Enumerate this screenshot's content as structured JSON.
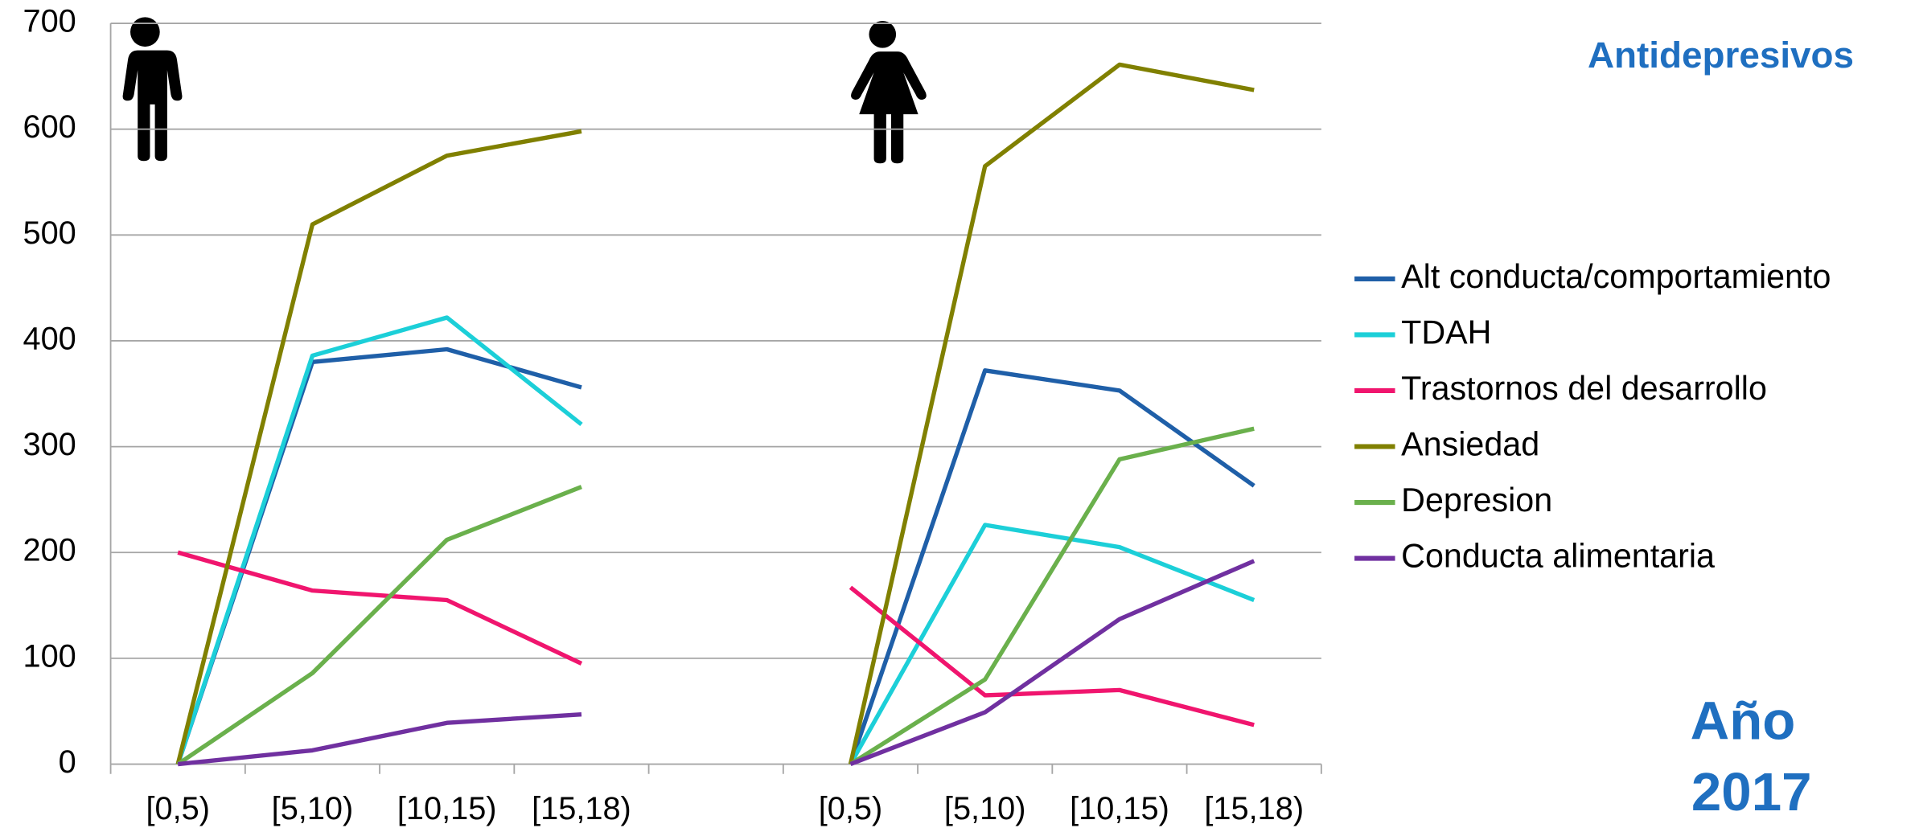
{
  "chart_data": {
    "type": "line",
    "title": "Antidepresivos",
    "annotation": [
      "Año",
      "2017"
    ],
    "categories": [
      "[0,5)",
      "[5,10)",
      "[10,15)",
      "[15,18)",
      null,
      "[0,5)",
      "[5,10)",
      "[10,15)",
      "[15,18)"
    ],
    "series": [
      {
        "name": "Alt conducta/comportamiento",
        "color": "#1f5fa8",
        "values": [
          0,
          380,
          392,
          356,
          null,
          0,
          372,
          353,
          263
        ]
      },
      {
        "name": "TDAH",
        "color": "#1ccfd8",
        "values": [
          0,
          386,
          422,
          321,
          null,
          0,
          226,
          205,
          155
        ]
      },
      {
        "name": "Trastornos del desarrollo",
        "color": "#f0156e",
        "values": [
          200,
          164,
          155,
          95,
          null,
          167,
          65,
          70,
          37
        ]
      },
      {
        "name": "Ansiedad",
        "color": "#808000",
        "values": [
          0,
          510,
          575,
          598,
          null,
          0,
          565,
          661,
          637
        ]
      },
      {
        "name": "Depresion",
        "color": "#6ab04c",
        "values": [
          0,
          86,
          212,
          262,
          null,
          0,
          80,
          288,
          317
        ]
      },
      {
        "name": "Conducta alimentaria",
        "color": "#7030a0",
        "values": [
          0,
          13,
          39,
          47,
          null,
          0,
          49,
          137,
          192
        ]
      }
    ],
    "ylim": [
      0,
      700
    ],
    "yticks": [
      0,
      100,
      200,
      300,
      400,
      500,
      600,
      700
    ],
    "grid": true,
    "legend": "right"
  }
}
